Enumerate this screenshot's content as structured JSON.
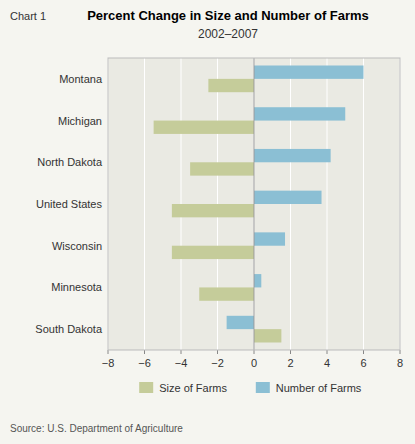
{
  "chart_data": {
    "type": "bar",
    "orientation": "horizontal",
    "title": "Percent Change in Size and Number of Farms",
    "subtitle": "2002–2007",
    "annotations": [
      "Chart 1",
      "Source: U.S. Department of Agriculture"
    ],
    "categories": [
      "Montana",
      "Michigan",
      "North Dakota",
      "United States",
      "Wisconsin",
      "Minnesota",
      "South Dakota"
    ],
    "series": [
      {
        "name": "Size of Farms",
        "color": "#c5cc9a",
        "values": [
          -2.5,
          -5.5,
          -3.5,
          -4.5,
          -4.5,
          -3.0,
          1.5
        ]
      },
      {
        "name": "Number of Farms",
        "color": "#8bbfd4",
        "values": [
          6.0,
          5.0,
          4.2,
          3.7,
          1.7,
          0.4,
          -1.5
        ]
      }
    ],
    "xlim": [
      -8,
      8
    ],
    "xticks": [
      {
        "value": -8,
        "label": "−8"
      },
      {
        "value": -6,
        "label": "−6"
      },
      {
        "value": -4,
        "label": "−4"
      },
      {
        "value": -2,
        "label": "−2"
      },
      0,
      2,
      4,
      6,
      8
    ],
    "grid": true,
    "legend": "bottom"
  }
}
